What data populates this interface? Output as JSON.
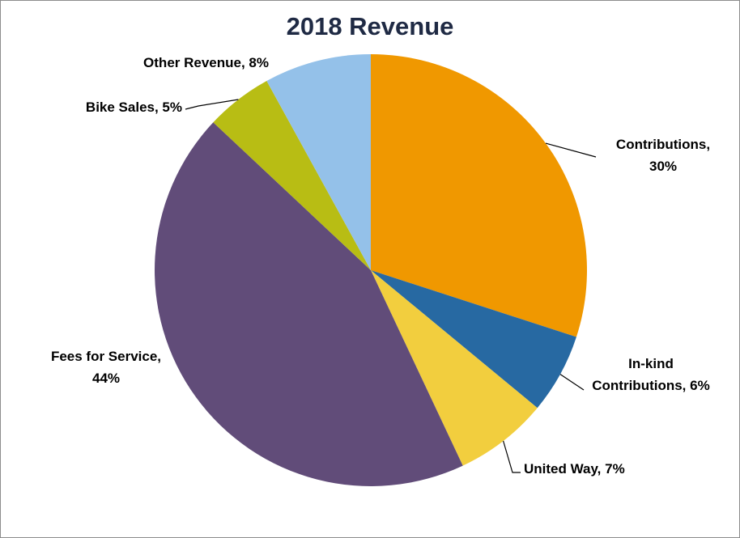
{
  "chart_data": {
    "type": "pie",
    "title": "2018 Revenue",
    "slices": [
      {
        "label": "Contributions",
        "value": 30,
        "display": "30%",
        "color": "#F09800"
      },
      {
        "label": "In-kind Contributions",
        "value": 6,
        "display": "6%",
        "color": "#2769A2"
      },
      {
        "label": "United Way",
        "value": 7,
        "display": "7%",
        "color": "#F2CE3E"
      },
      {
        "label": "Fees for Service",
        "value": 44,
        "display": "44%",
        "color": "#614C79"
      },
      {
        "label": "Bike Sales",
        "value": 5,
        "display": "5%",
        "color": "#B8BD14"
      },
      {
        "label": "Other Revenue",
        "value": 8,
        "display": "8%",
        "color": "#94C1E9"
      }
    ],
    "data_labels": [
      {
        "lines": [
          "Contributions,",
          "30%"
        ]
      },
      {
        "lines": [
          "In-kind",
          "Contributions, 6%"
        ]
      },
      {
        "lines": [
          "United Way, 7%"
        ]
      },
      {
        "lines": [
          "Fees for Service,",
          "44%"
        ]
      },
      {
        "lines": [
          "Bike Sales, 5%"
        ]
      },
      {
        "lines": [
          "Other Revenue, 8%"
        ]
      }
    ],
    "start_angle": "12 o'clock",
    "direction": "clockwise",
    "legend": "none"
  }
}
